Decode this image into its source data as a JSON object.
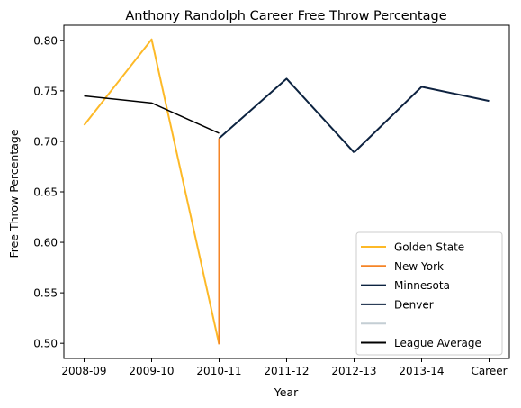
{
  "chart_data": {
    "type": "line",
    "title": "Anthony Randolph Career Free Throw Percentage",
    "xlabel": "Year",
    "ylabel": "Free Throw Percentage",
    "categories": [
      "2008-09",
      "2009-10",
      "2010-11",
      "2011-12",
      "2012-13",
      "2013-14",
      "Career"
    ],
    "ylim": [
      0.485,
      0.815
    ],
    "yticks": [
      "0.50",
      "0.55",
      "0.60",
      "0.65",
      "0.70",
      "0.75",
      "0.80"
    ],
    "grid": false,
    "legend_placement": "lower-right",
    "series": [
      {
        "name": "Golden State",
        "color": "#FDB927",
        "width": 2,
        "points": [
          [
            0,
            0.716
          ],
          [
            1,
            0.801
          ],
          [
            2,
            0.499
          ]
        ]
      },
      {
        "name": "New York",
        "color": "#F58426",
        "width": 2,
        "points": [
          [
            2,
            0.499
          ],
          [
            2,
            0.703
          ]
        ]
      },
      {
        "name": "Minnesota",
        "color": "#0C2340",
        "width": 2,
        "points": [
          [
            2,
            0.703
          ],
          [
            3,
            0.762
          ],
          [
            4,
            0.689
          ]
        ]
      },
      {
        "name": "Denver",
        "color": "#0E2240",
        "width": 2,
        "points": [
          [
            4,
            0.689
          ],
          [
            5,
            0.754
          ],
          [
            6,
            0.74
          ]
        ]
      },
      {
        "name": "",
        "color": "#C4CED4",
        "width": 2,
        "points": []
      },
      {
        "name": "League Average",
        "color": "#000000",
        "width": 1.5,
        "points": [
          [
            0,
            0.745
          ],
          [
            1,
            0.738
          ],
          [
            2,
            0.708
          ]
        ]
      }
    ]
  }
}
